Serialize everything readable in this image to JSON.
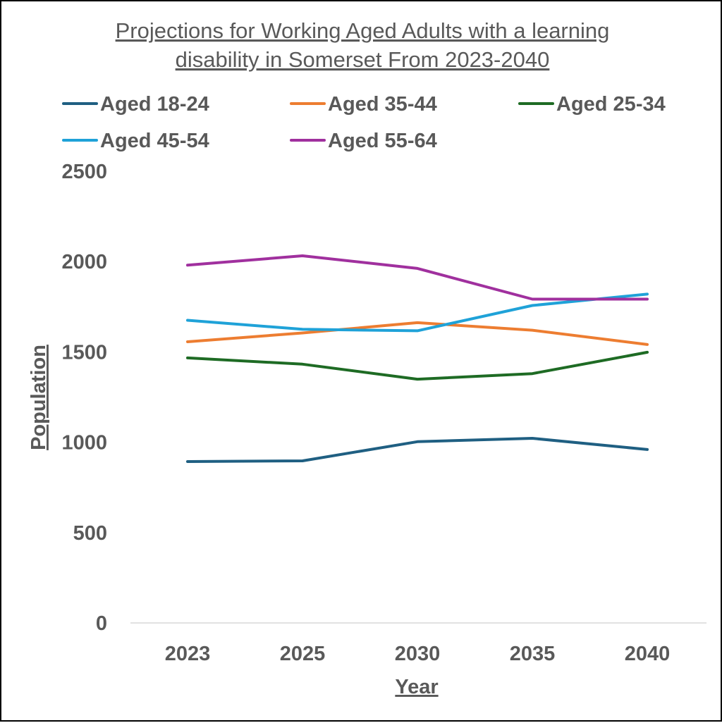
{
  "chart_data": {
    "type": "line",
    "title_lines": [
      "Projections for Working Aged Adults with a learning",
      "disability in Somerset From 2023-2040"
    ],
    "xlabel": "Year",
    "ylabel": "Population",
    "x": [
      "2023",
      "2025",
      "2030",
      "2035",
      "2040"
    ],
    "ylim": [
      0,
      2500
    ],
    "yticks": [
      "0",
      "500",
      "1000",
      "1500",
      "2000",
      "2500"
    ],
    "grid": false,
    "legend_position": "top",
    "series": [
      {
        "name": "Aged 18-24",
        "color": "#1f5f82",
        "values": [
          893,
          897,
          1003,
          1022,
          960
        ]
      },
      {
        "name": "Aged 35-44",
        "color": "#ed7d31",
        "values": [
          1556,
          1605,
          1662,
          1620,
          1541
        ]
      },
      {
        "name": "Aged 25-34",
        "color": "#1e6b24",
        "values": [
          1467,
          1432,
          1349,
          1380,
          1498
        ]
      },
      {
        "name": "Aged 45-54",
        "color": "#1fa2d8",
        "values": [
          1675,
          1625,
          1617,
          1757,
          1820
        ]
      },
      {
        "name": "Aged 55-64",
        "color": "#a0309e",
        "values": [
          1980,
          2032,
          1962,
          1792,
          1792
        ]
      }
    ]
  }
}
